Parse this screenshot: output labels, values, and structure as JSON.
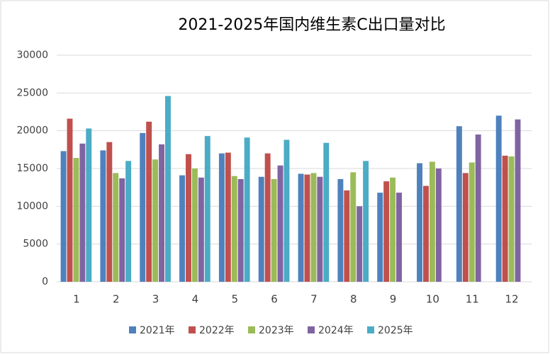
{
  "chart_data": {
    "type": "bar",
    "title": "2021-2025年国内维生素C出口量对比",
    "categories": [
      "1",
      "2",
      "3",
      "4",
      "5",
      "6",
      "7",
      "8",
      "9",
      "10",
      "11",
      "12"
    ],
    "series": [
      {
        "name": "2021年",
        "color": "#4f81bd",
        "values": [
          17300,
          17400,
          19700,
          14100,
          17000,
          13900,
          14300,
          13600,
          11800,
          15700,
          20600,
          22000
        ]
      },
      {
        "name": "2022年",
        "color": "#c0504d",
        "values": [
          21600,
          18500,
          21200,
          16900,
          17100,
          17000,
          14200,
          12100,
          13300,
          12700,
          14400,
          16700
        ]
      },
      {
        "name": "2023年",
        "color": "#9bbb59",
        "values": [
          16400,
          14400,
          16200,
          15000,
          14000,
          13600,
          14400,
          14500,
          13800,
          15900,
          15800,
          16600
        ]
      },
      {
        "name": "2024年",
        "color": "#8064a2",
        "values": [
          18300,
          13700,
          18200,
          13800,
          13600,
          15400,
          13900,
          10000,
          11800,
          15000,
          19500,
          21500
        ]
      },
      {
        "name": "2025年",
        "color": "#4bacc6",
        "values": [
          20300,
          16000,
          24600,
          19300,
          19100,
          18800,
          18400,
          16000,
          null,
          null,
          null,
          null
        ]
      }
    ],
    "ylim": [
      0,
      30000
    ],
    "yticks": [
      0,
      5000,
      10000,
      15000,
      20000,
      25000,
      30000
    ],
    "grid": true,
    "legend": "bottom"
  }
}
